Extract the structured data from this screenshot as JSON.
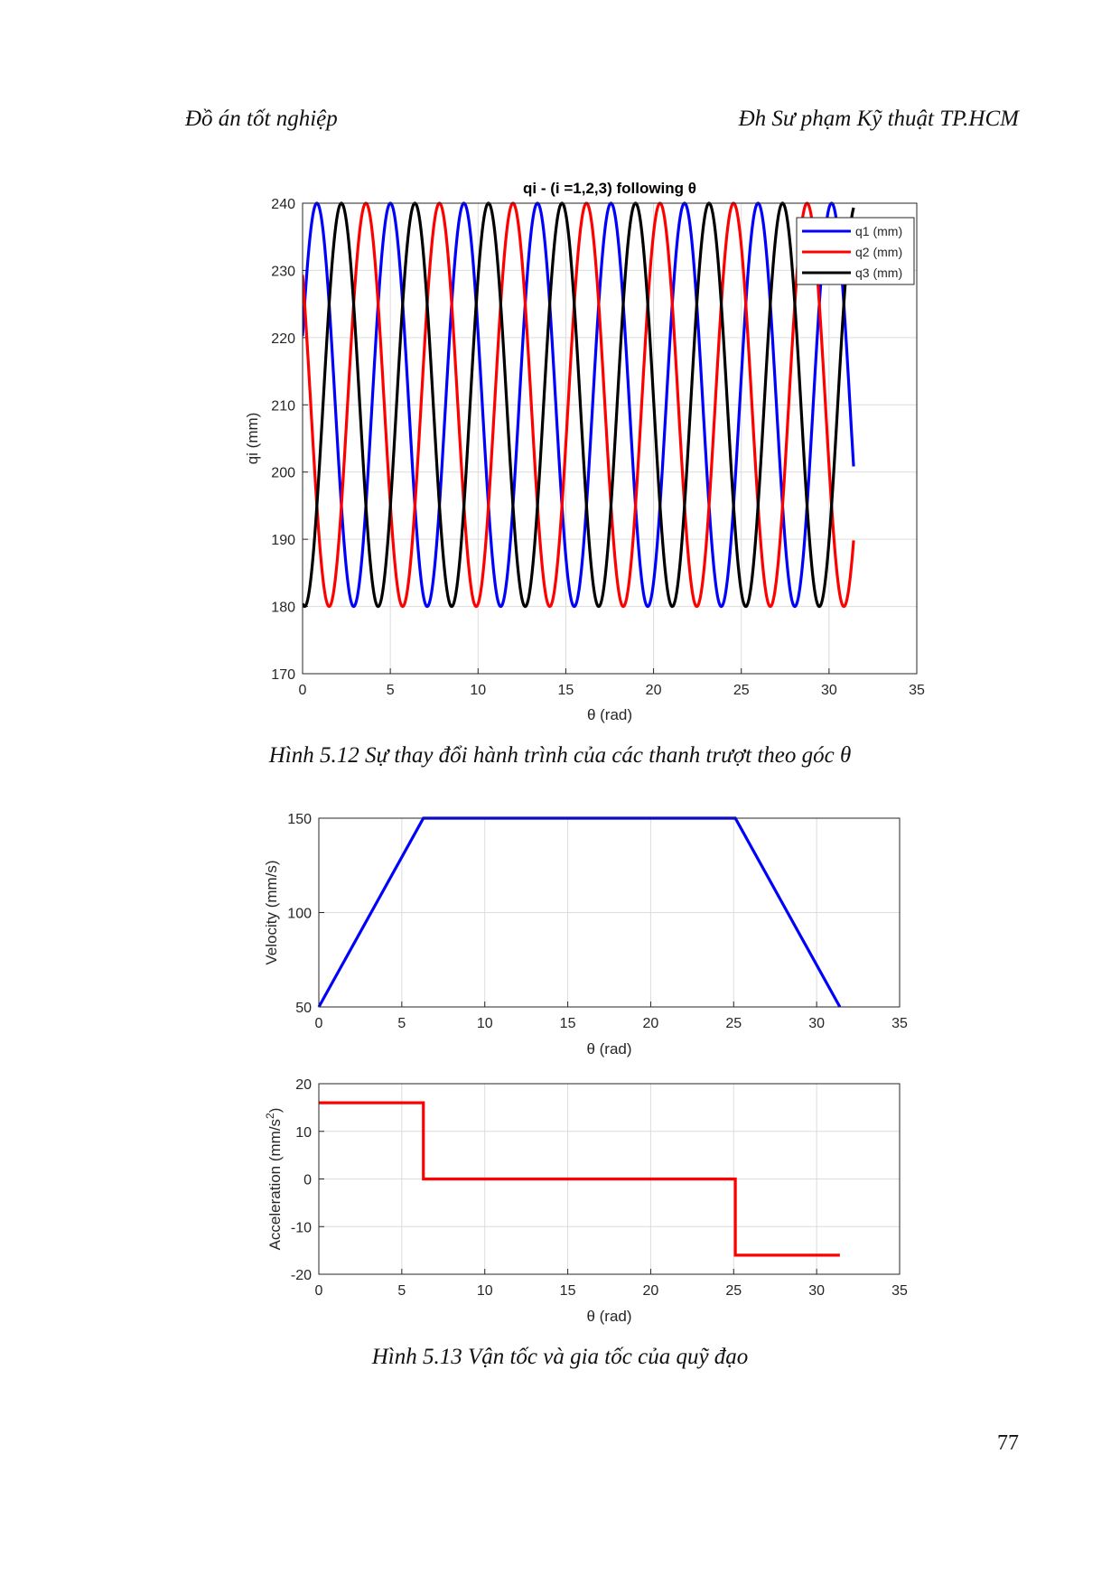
{
  "header": {
    "left": "Đồ án tốt nghiệp",
    "right": "Đh Sư phạm Kỹ thuật TP.HCM"
  },
  "figures": [
    {
      "caption": "Hình 5.12 Sự thay đổi hành trình của các thanh trượt theo góc θ"
    },
    {
      "caption": "Hình 5.13 Vận tốc và gia tốc của quỹ đạo"
    }
  ],
  "page_number": "77",
  "chart_data": [
    {
      "type": "line",
      "title": "qi - (i =1,2,3) following θ",
      "xlabel": "θ (rad)",
      "ylabel": "qi (mm)",
      "xlim": [
        0,
        35
      ],
      "ylim": [
        170,
        240
      ],
      "xticks": [
        0,
        5,
        10,
        15,
        20,
        25,
        30,
        35
      ],
      "yticks": [
        170,
        180,
        190,
        200,
        210,
        220,
        230,
        240
      ],
      "grid": true,
      "legend_position": "top-right",
      "x_range": [
        0,
        31.4
      ],
      "series": [
        {
          "name": "q1 (mm)",
          "color": "#0000ff",
          "center": 210,
          "amplitude": 30,
          "period": 4.19,
          "phase": 0.348
        },
        {
          "name": "q2 (mm)",
          "color": "#ff0000",
          "center": 210,
          "amplitude": 30,
          "period": 4.19,
          "phase": 2.442
        },
        {
          "name": "q3 (mm)",
          "color": "#000000",
          "center": 210,
          "amplitude": 30,
          "period": 4.19,
          "phase": -1.746
        }
      ]
    },
    {
      "type": "line",
      "title": "",
      "xlabel": "θ (rad)",
      "ylabel": "Velocity (mm/s)",
      "xlim": [
        0,
        35
      ],
      "ylim": [
        50,
        150
      ],
      "xticks": [
        0,
        5,
        10,
        15,
        20,
        25,
        30,
        35
      ],
      "yticks": [
        50,
        100,
        150
      ],
      "grid": true,
      "series": [
        {
          "name": "velocity",
          "color": "#0000ff",
          "x": [
            0,
            6.3,
            25.1,
            31.4
          ],
          "y": [
            50,
            150,
            150,
            50
          ]
        }
      ]
    },
    {
      "type": "line",
      "title": "",
      "xlabel": "θ (rad)",
      "ylabel": "Acceleration (mm/s²)",
      "ylabel_main": "Acceleration (mm/s",
      "ylabel_sup": "2",
      "ylabel_end": ")",
      "xlim": [
        0,
        35
      ],
      "ylim": [
        -20,
        20
      ],
      "xticks": [
        0,
        5,
        10,
        15,
        20,
        25,
        30,
        35
      ],
      "yticks": [
        -20,
        -10,
        0,
        10,
        20
      ],
      "grid": true,
      "series": [
        {
          "name": "acceleration",
          "color": "#ff0000",
          "x": [
            0,
            6.3,
            6.3,
            25.1,
            25.1,
            31.4
          ],
          "y": [
            16,
            16,
            0,
            0,
            -16,
            -16
          ]
        }
      ]
    }
  ]
}
